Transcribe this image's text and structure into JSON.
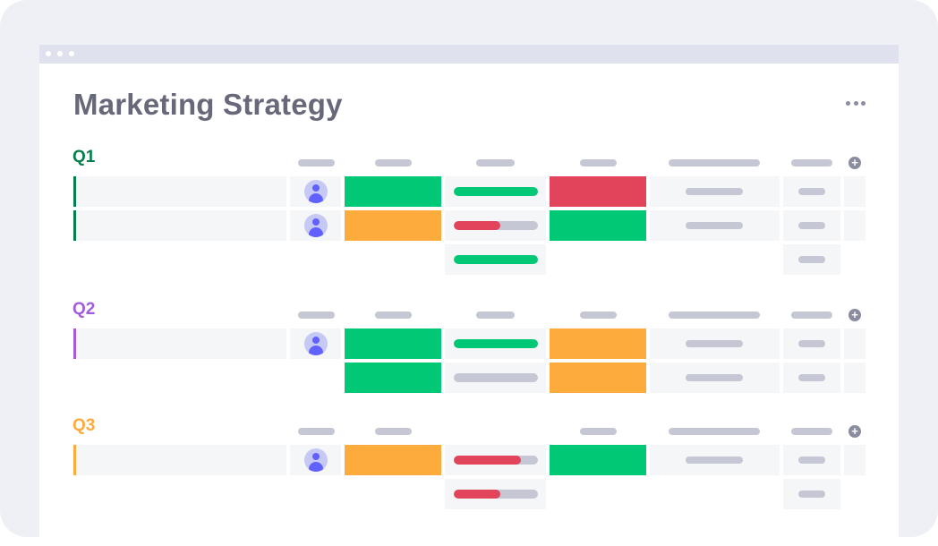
{
  "board": {
    "title": "Marketing Strategy"
  },
  "colors": {
    "green": "#00c875",
    "orange": "#fdab3d",
    "red": "#e2445c",
    "grey_track": "#c5c7d4",
    "q1": "#037f4c",
    "q2": "#a25ddc",
    "q3": "#fdab3d"
  },
  "groups": [
    {
      "label": "Q1",
      "rows": [
        {
          "has_item": true,
          "status_a": "green",
          "progress": 1.0,
          "progress_color": "green",
          "status_b": "red"
        },
        {
          "has_item": true,
          "status_a": "orange",
          "progress": 0.55,
          "progress_color": "red",
          "status_b": "green"
        },
        {
          "has_item": false,
          "progress": 1.0,
          "progress_color": "green"
        }
      ]
    },
    {
      "label": "Q2",
      "rows": [
        {
          "has_item": true,
          "status_a": "green",
          "progress": 1.0,
          "progress_color": "green",
          "status_b": "orange"
        },
        {
          "has_item": false,
          "status_a": "green",
          "progress": 0.0,
          "progress_color": "green",
          "status_b": "orange"
        }
      ]
    },
    {
      "label": "Q3",
      "rows": [
        {
          "has_item": true,
          "status_a": "orange",
          "progress": 0.8,
          "progress_color": "red",
          "status_b": "green"
        },
        {
          "has_item": false,
          "progress": 0.55,
          "progress_color": "red"
        }
      ]
    }
  ]
}
